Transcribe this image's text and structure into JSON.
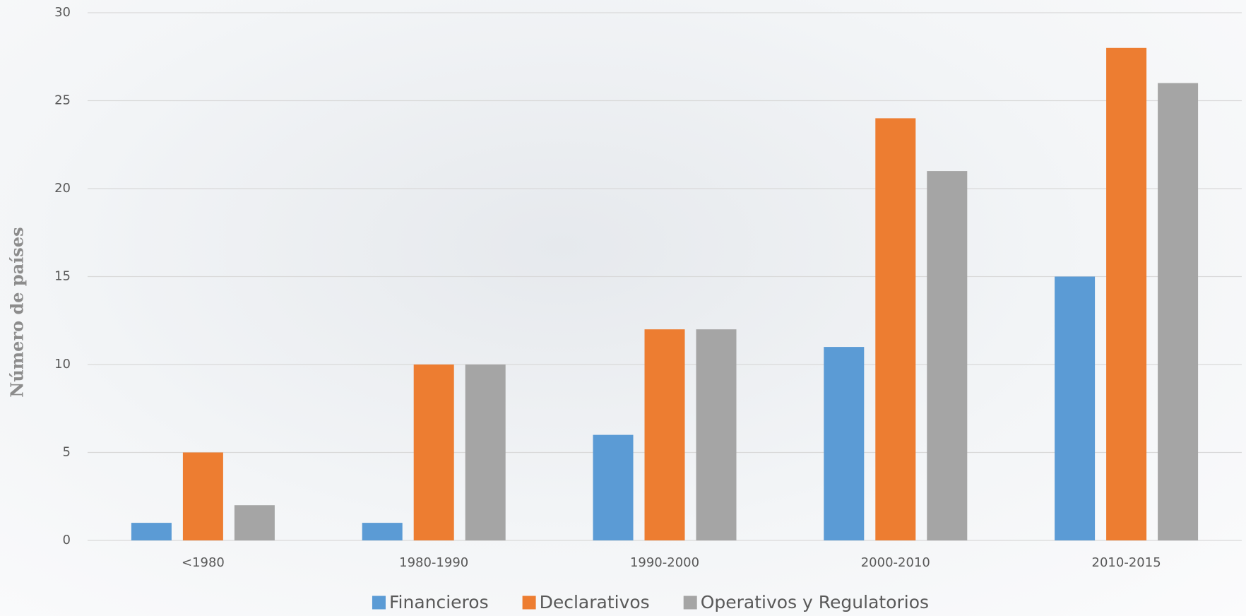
{
  "chart_data": {
    "type": "bar",
    "y_label": "Número de países",
    "categories": [
      "<1980",
      "1980-1990",
      "1990-2000",
      "2000-2010",
      "2010-2015"
    ],
    "series": [
      {
        "name": "Financieros",
        "color": "#5b9bd5",
        "values": [
          1,
          1,
          6,
          11,
          15
        ]
      },
      {
        "name": "Declarativos",
        "color": "#ed7d31",
        "values": [
          5,
          10,
          12,
          24,
          28
        ]
      },
      {
        "name": "Operativos y Regulatorios",
        "color": "#a5a5a5",
        "values": [
          2,
          10,
          12,
          21,
          26
        ]
      }
    ],
    "ylim": [
      0,
      30
    ],
    "yticks": [
      0,
      5,
      10,
      15,
      20,
      25,
      30
    ],
    "grid": true,
    "legend": "bottom"
  }
}
